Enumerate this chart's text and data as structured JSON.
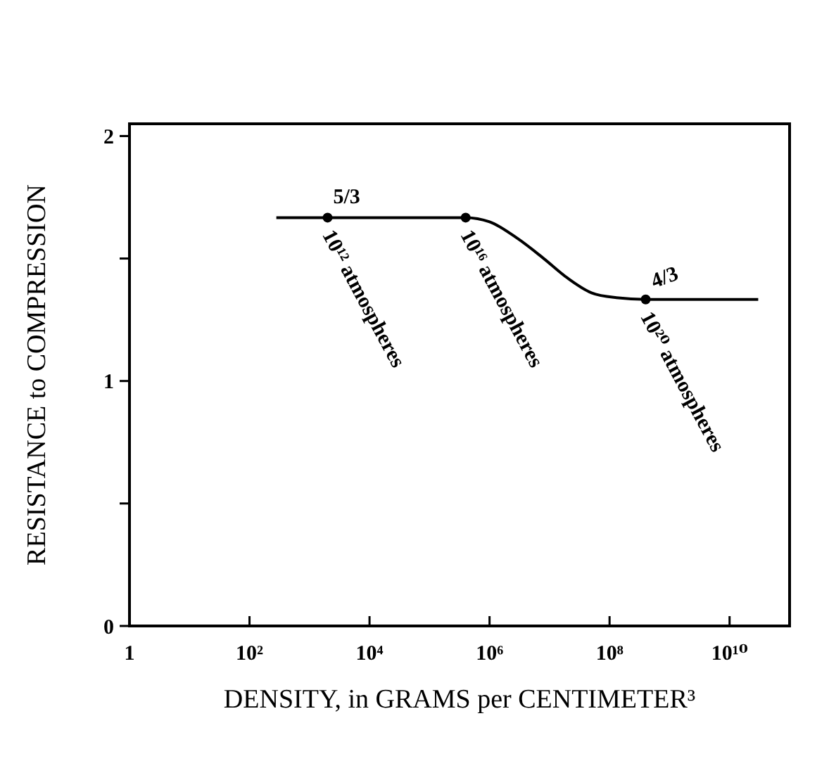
{
  "chart_data": {
    "type": "line",
    "xlabel": "DENSITY, in GRAMS per CENTIMETER³",
    "ylabel": "RESISTANCE to COMPRESSION",
    "log": "x",
    "xlim": [
      1,
      100000000000
    ],
    "xticks": [
      1,
      {
        "value": 100,
        "label": "10²"
      },
      {
        "value": 10000,
        "label": "10⁴"
      },
      {
        "value": 1000000,
        "label": "10⁶"
      },
      {
        "value": 100000000,
        "label": "10⁸"
      },
      {
        "value": 10000000000,
        "label": "10¹⁰"
      }
    ],
    "ylim": [
      0,
      2.05
    ],
    "yticks": [
      0,
      {
        "value": 0.5,
        "label": null
      },
      1,
      {
        "value": 1.5,
        "label": null
      },
      2
    ],
    "grid": false,
    "series": [
      {
        "color": "#000000",
        "marker": "none",
        "line_style": "solid",
        "x": [
          280,
          2000,
          10000,
          100000,
          400000,
          1000000,
          3000000,
          8000000,
          20000000,
          50000000,
          130000000,
          400000000,
          3000000000,
          30000000000
        ],
        "values": [
          1.667,
          1.667,
          1.667,
          1.667,
          1.667,
          1.65,
          1.58,
          1.5,
          1.42,
          1.36,
          1.34,
          1.333,
          1.333,
          1.333
        ]
      },
      {
        "type": "scatter",
        "color": "#000000",
        "marker": "circle",
        "x": [
          2000,
          400000,
          400000000
        ],
        "values": [
          1.667,
          1.667,
          1.333
        ]
      }
    ],
    "annotations": [
      {
        "text": "5/3",
        "x": 2000,
        "y": 1.667
      },
      {
        "text": "4/3",
        "x": 400000000,
        "y": 1.333
      },
      {
        "text": "10¹² atmospheres",
        "x": 2000,
        "y": 1.667
      },
      {
        "text": "10¹⁶ atmospheres",
        "x": 400000,
        "y": 1.667
      },
      {
        "text": "10²⁰ atmospheres",
        "x": 400000000,
        "y": 1.333
      }
    ]
  }
}
